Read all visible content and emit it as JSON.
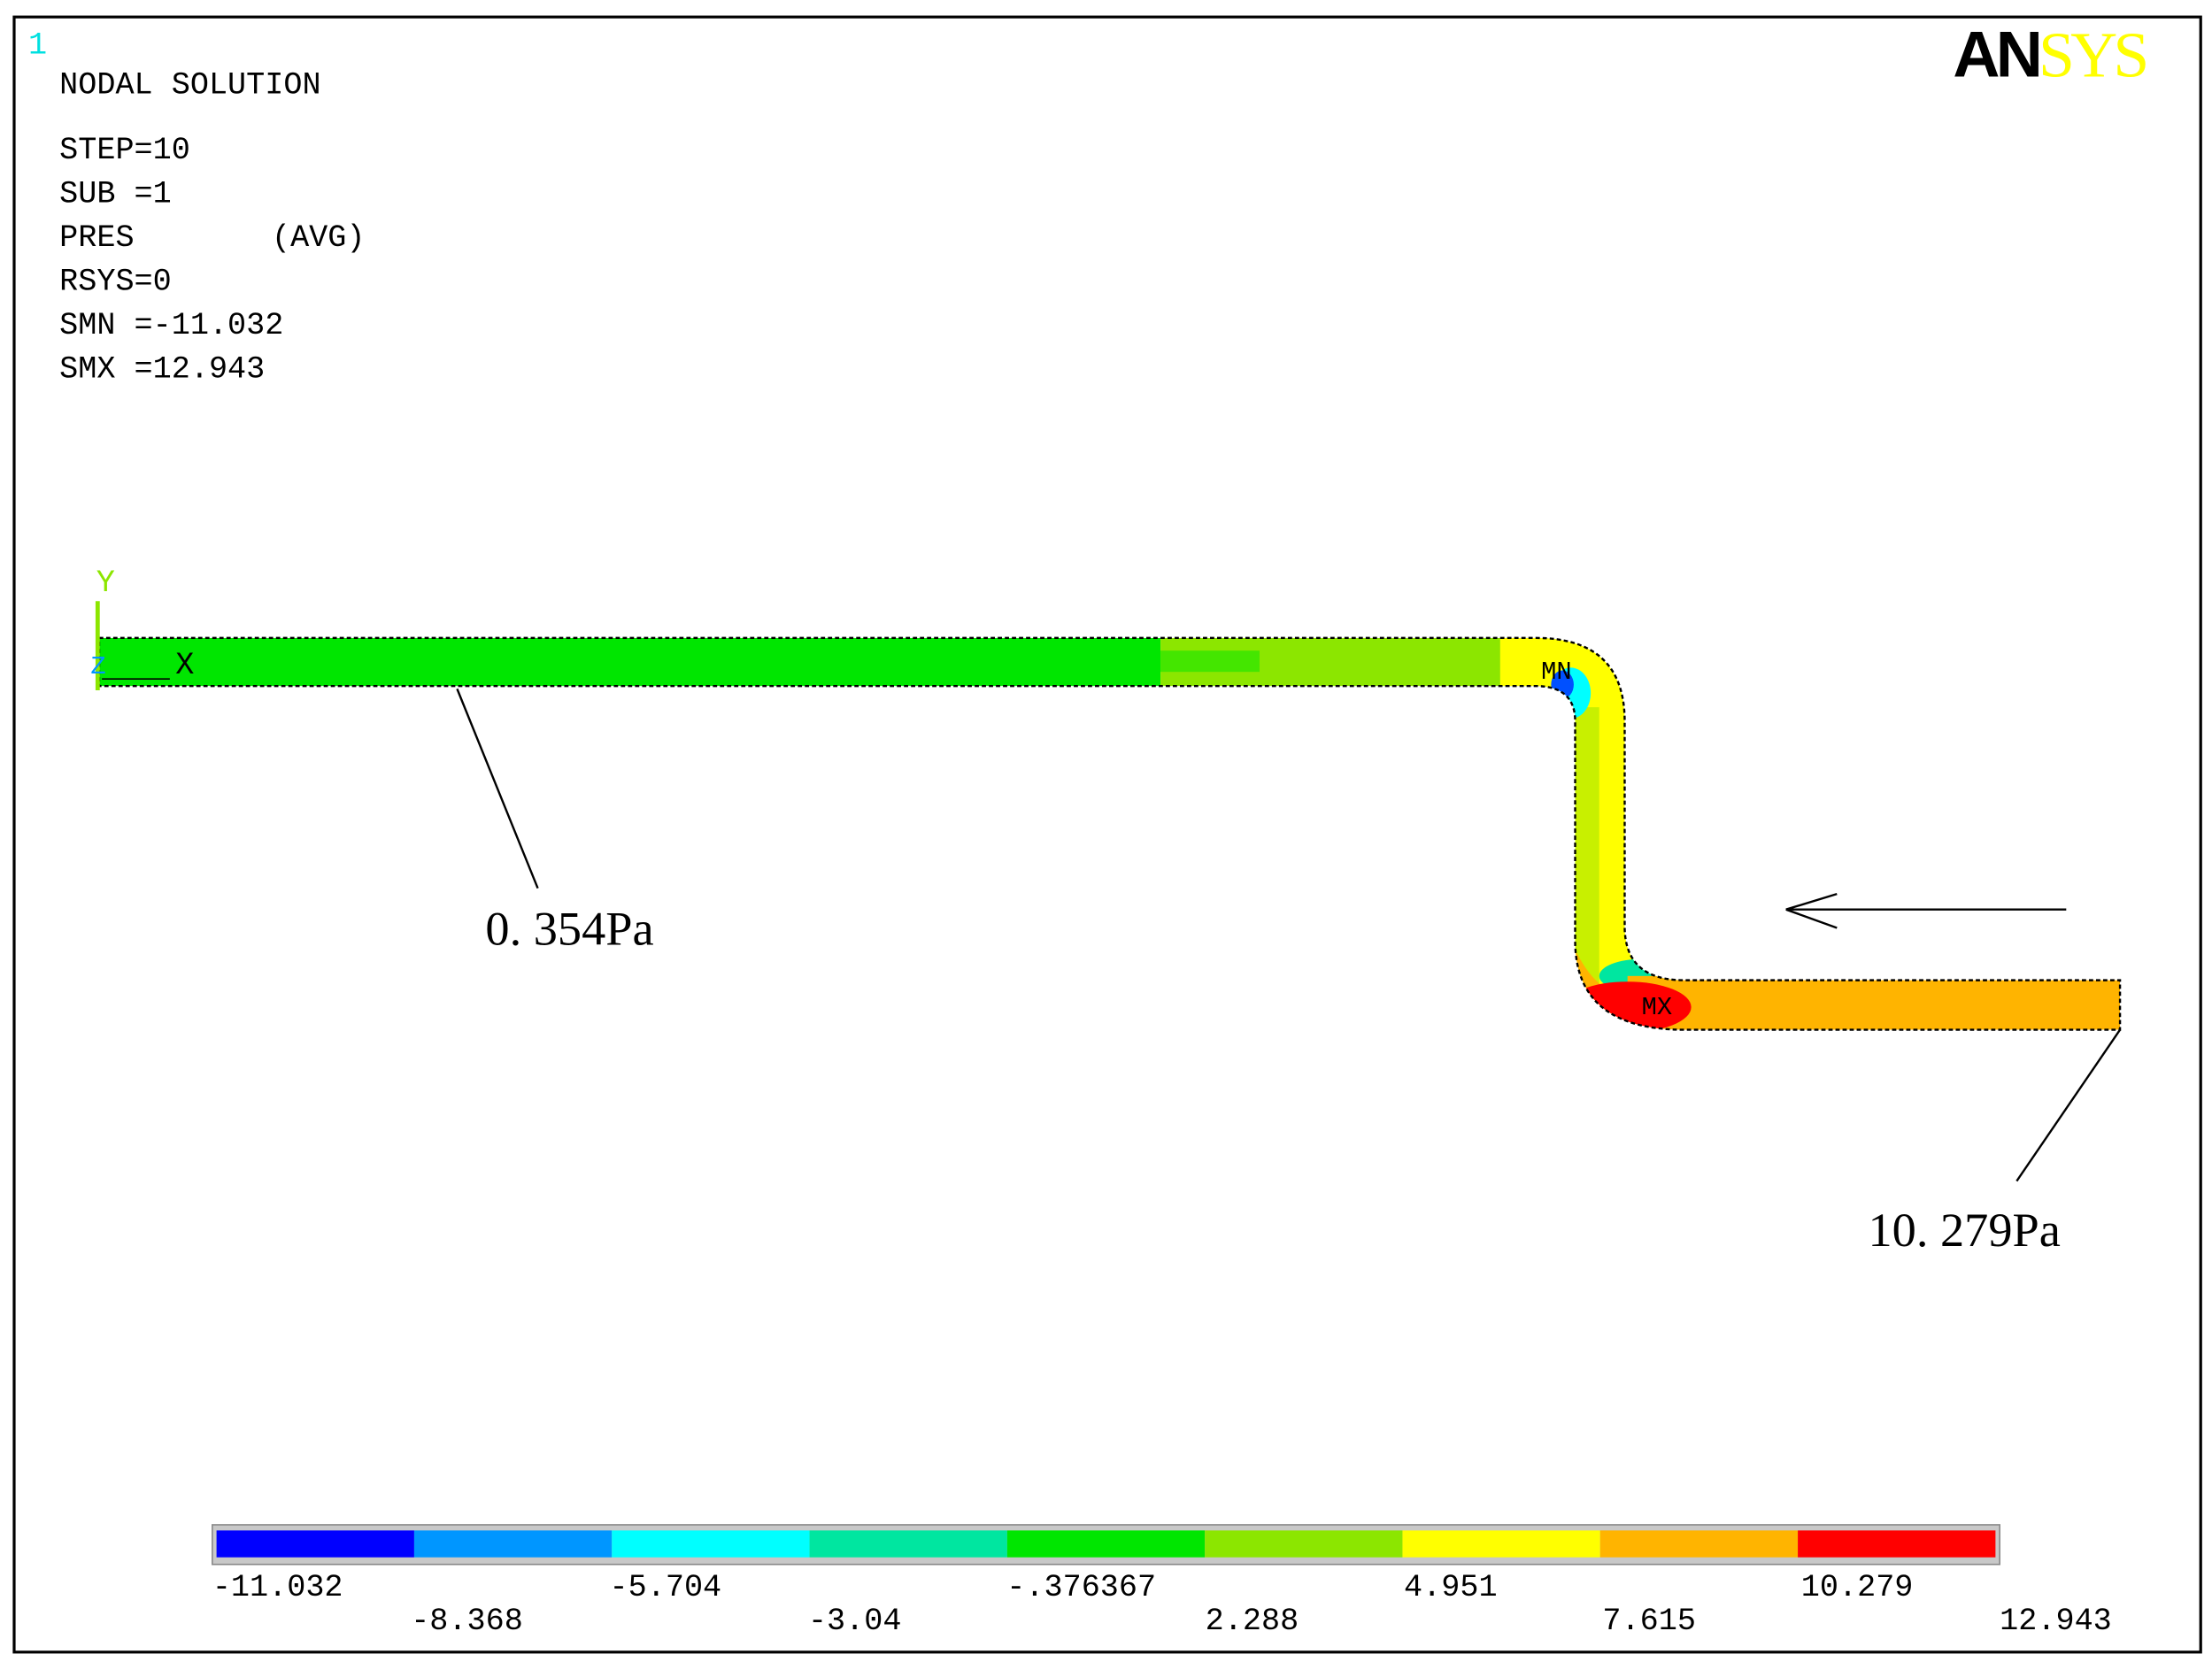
{
  "window_number": "1",
  "info": {
    "title": "NODAL SOLUTION",
    "step": "STEP=10",
    "sub": "SUB =1",
    "result": "PRES",
    "avg": "(AVG)",
    "rsys": "RSYS=0",
    "smn": "SMN =-11.032",
    "smx": "SMX =12.943"
  },
  "logo": {
    "black": "AN",
    "yellow": "SYS"
  },
  "axes": {
    "y": "Y",
    "z": "Z",
    "x": "X"
  },
  "markers": {
    "min": "MN",
    "max": "MX"
  },
  "annotations": {
    "outlet": "0. 354Pa",
    "inlet": "10. 279Pa"
  },
  "legend": {
    "labels": [
      "-11.032",
      "-8.368",
      "-5.704",
      "-3.04",
      "-.376367",
      "2.288",
      "4.951",
      "7.615",
      "10.279",
      "12.943"
    ],
    "colors": [
      "#0000ff",
      "#0096ff",
      "#00ffff",
      "#00e6a0",
      "#00e600",
      "#8ce600",
      "#ffff00",
      "#ffb400",
      "#ff0000"
    ]
  }
}
